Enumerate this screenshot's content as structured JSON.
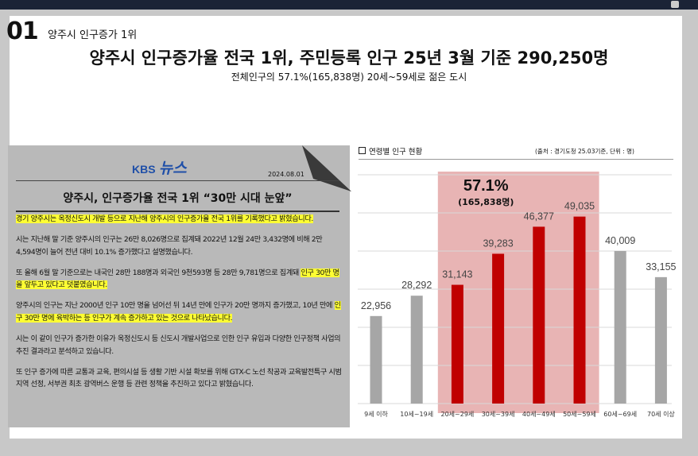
{
  "slide": {
    "number": "01",
    "small_title": "양주시 인구증가 1위",
    "headline": "양주시 인구증가율 전국 1위, 주민등록 인구 25년 3월 기준 290,250명",
    "subline": "전체인구의 57.1%(165,838명) 20세~59세로 젊은 도시"
  },
  "news": {
    "brand_kbs": "KBS",
    "brand_news": "뉴스",
    "date": "2024.08.01",
    "title": "양주시, 인구증가율 전국 1위 “30만 시대 눈앞”",
    "p1": "경기 양주시는 옥정신도시 개발 등으로 지난해 양주시의 인구증가율 전국 1위를 기록했다고 밝혔습니다.",
    "p2": "시는 지난해 말 기준 양주시의 인구는 26만 8,026명으로 집계돼 2022년 12월 24만 3,432명에 비해 2만 4,594명이 늘어 전년 대비 10.1% 증가했다고 설명했습니다.",
    "p3a": "또 올해 6월 말 기준으로는 내국인 28만 188명과 외국인 9천593명 등 28만 9,781명으로 집계돼 ",
    "p3b": "인구 30만 명을 앞두고 있다고 덧붙였습니다.",
    "p4a": "양주시의 인구는 지난 2000년 인구 10만 명을 넘어선 뒤 14년 만에 인구가 20만 명까지 증가했고, 10년 만에 ",
    "p4b": "인구 30만 명에 육박하는 등 인구가 계속 증가하고 있는 것으로 나타났습니다.",
    "p5": "시는 이 같이 인구가 증가한 이유가 옥정신도시 등 신도시 개발사업으로 인한 인구 유입과 다양한 인구정책 사업의 추진 결과라고 분석하고 있습니다.",
    "p6": "또 인구 증가에 따른 교통과 교육, 편의시설 등 생활 기반 시설 확보를 위해 GTX-C 노선 착공과 교육발전특구 시범지역 선정, 서부권 최초 광역버스 운행 등 관련 정책을 추진하고 있다고 밝혔습니다."
  },
  "chart_panel": {
    "title": "연령별 인구 현황",
    "source": "(출처 : 경기도청 25.03기준, 단위 : 명)"
  },
  "colors": {
    "highlight_bar": "#c00000",
    "normal_bar": "#a6a6a6",
    "highlight_band": "#e8b4b4",
    "text_highlight": "#ffff33",
    "news_background": "#b9b9b9"
  },
  "chart_data": {
    "type": "bar",
    "title": "연령별 인구 현황",
    "categories": [
      "9세 이하",
      "10세~19세",
      "20세~29세",
      "30세~39세",
      "40세~49세",
      "50세~59세",
      "60세~69세",
      "70세 이상"
    ],
    "values": [
      22956,
      28292,
      31143,
      39283,
      46377,
      49035,
      40009,
      33155
    ],
    "value_labels": [
      "22,956",
      "28,292",
      "31,143",
      "39,283",
      "46,377",
      "49,035",
      "40,009",
      "33,155"
    ],
    "highlighted": [
      false,
      false,
      true,
      true,
      true,
      true,
      false,
      false
    ],
    "ylim": [
      0,
      60000
    ],
    "grid": true,
    "annotation_pct": "57.1%",
    "annotation_count": "(165,838명)"
  }
}
